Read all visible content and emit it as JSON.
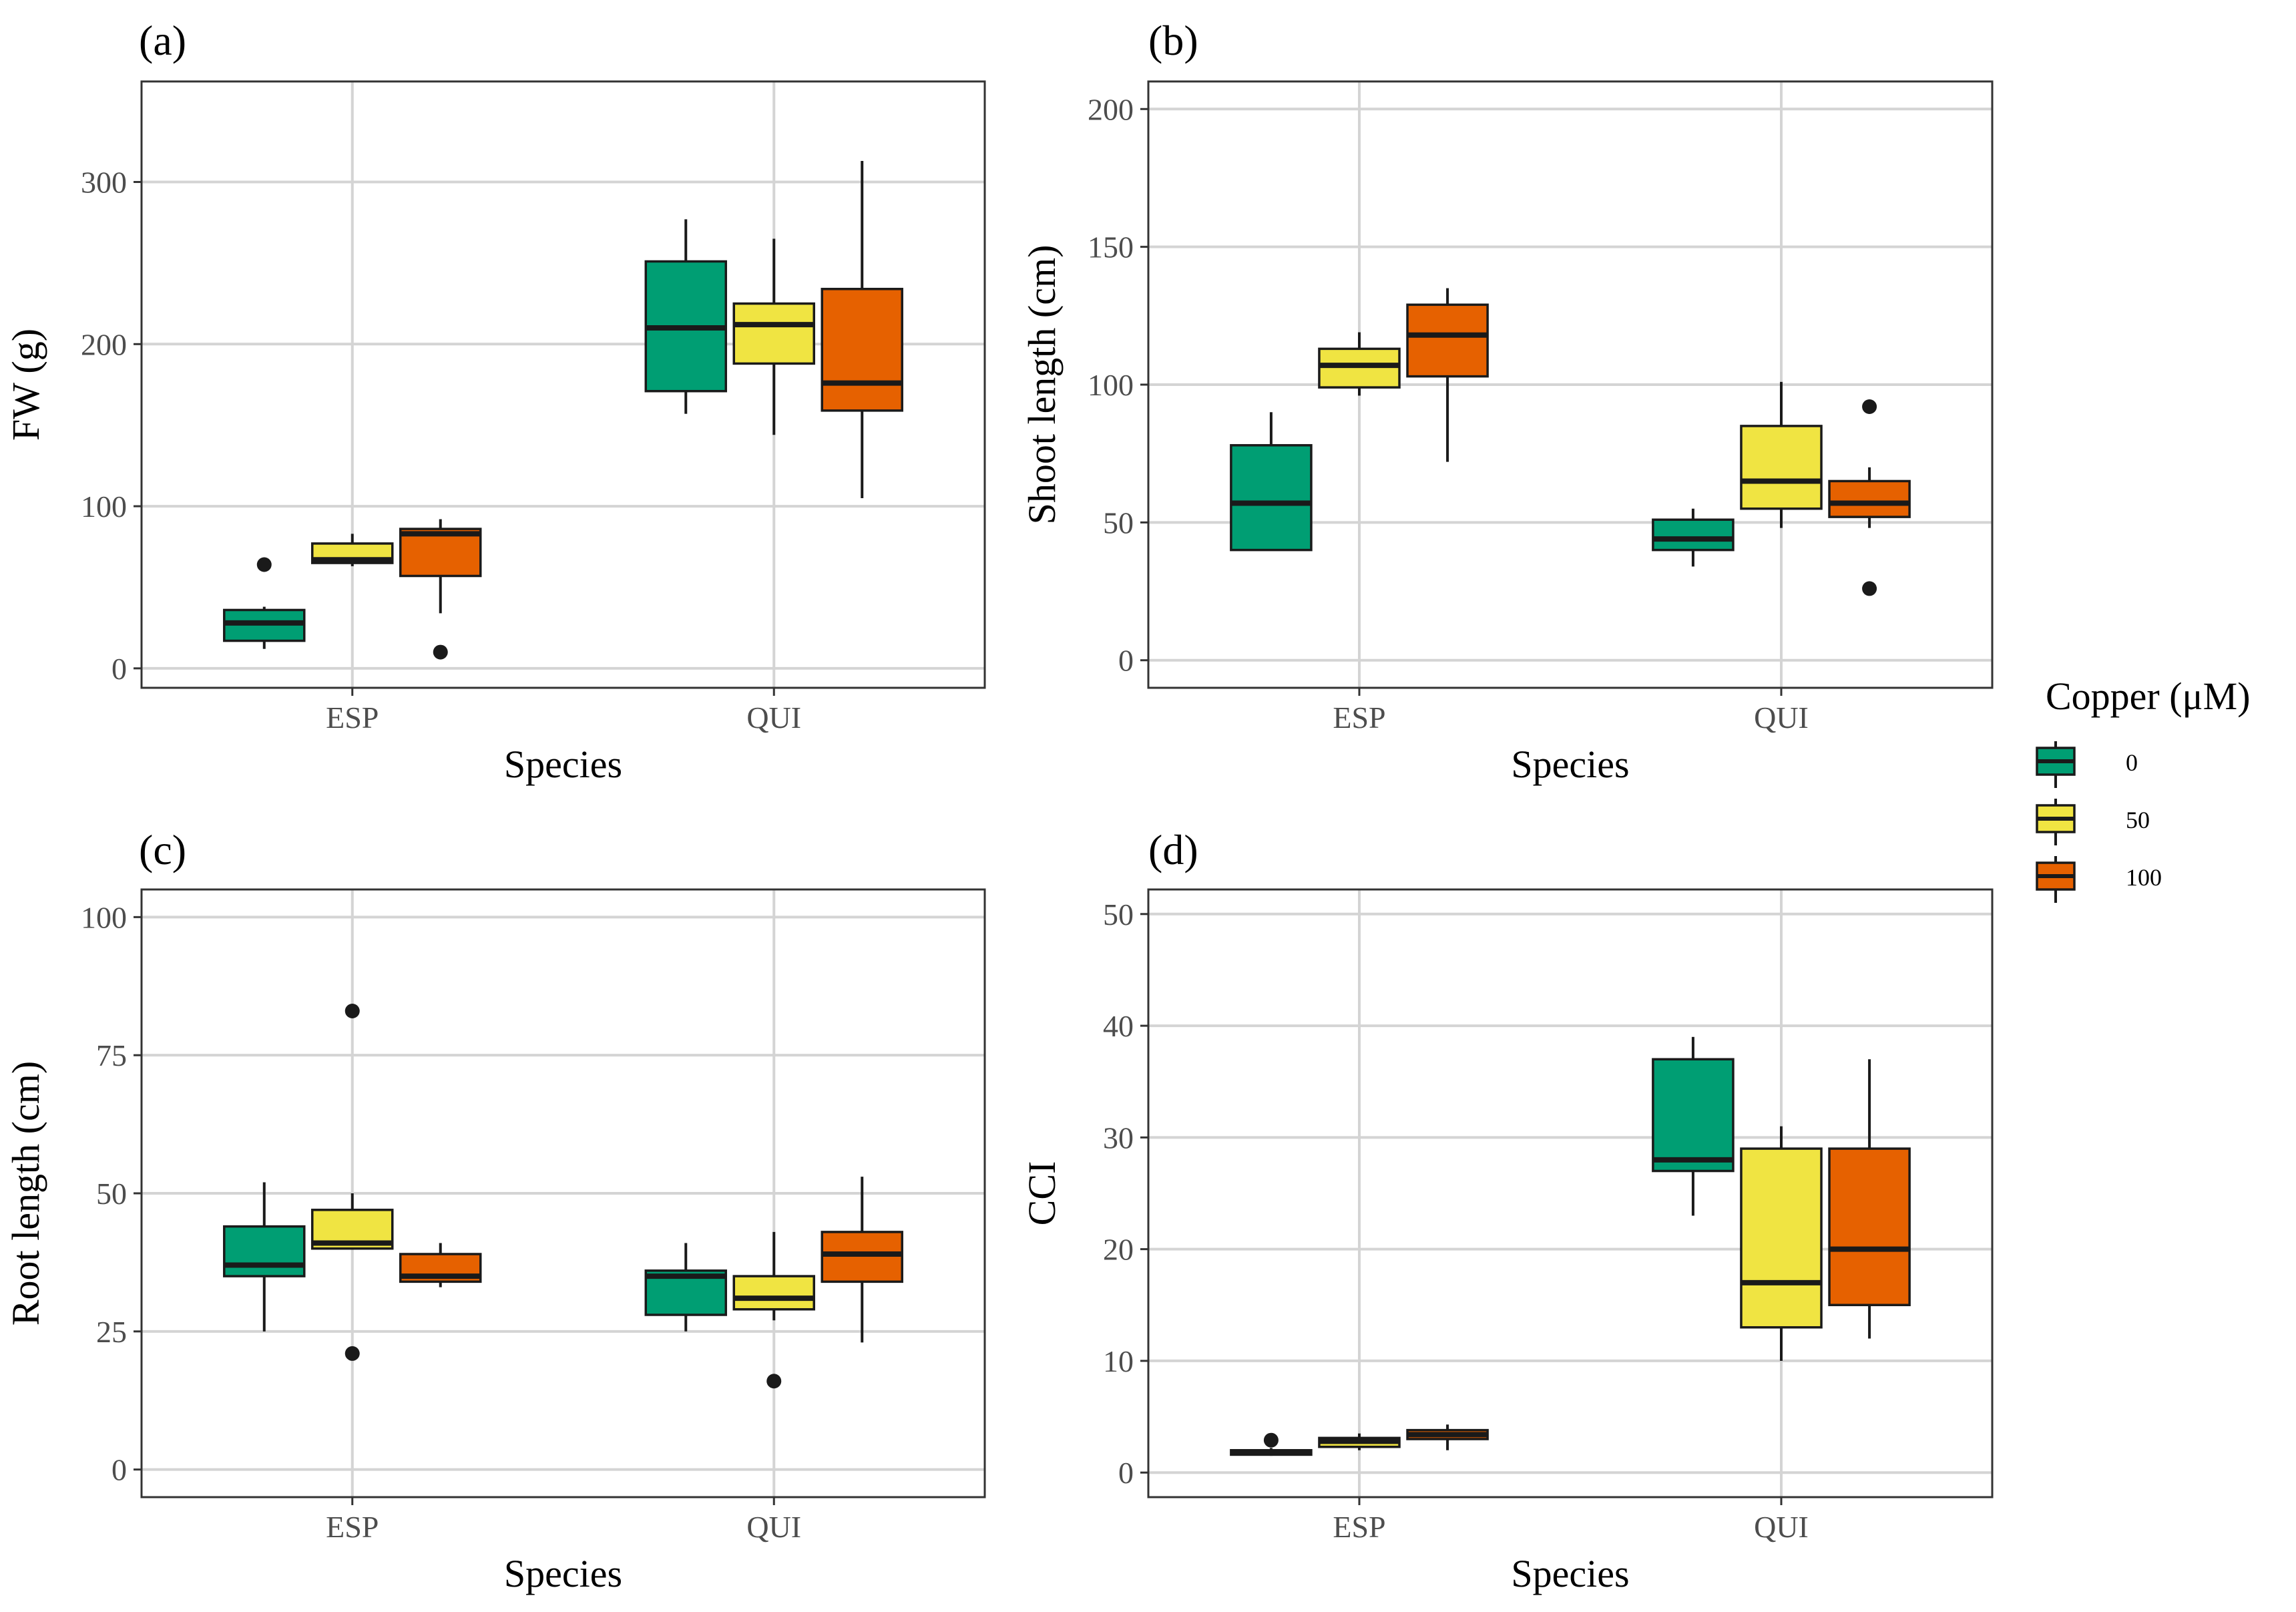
{
  "legend": {
    "title": "Copper (μM)",
    "items": [
      {
        "label": "0",
        "color": "#009E73"
      },
      {
        "label": "50",
        "color": "#F0E442"
      },
      {
        "label": "100",
        "color": "#E66100"
      }
    ]
  },
  "chart_data": [
    {
      "type": "box",
      "tag": "(a)",
      "title": "",
      "xlabel": "Species",
      "ylabel": "FW (g)",
      "categories": [
        "ESP",
        "QUI"
      ],
      "ylim": [
        -12,
        362
      ],
      "yticks": [
        0,
        100,
        200,
        300
      ],
      "series": [
        {
          "name": "0",
          "boxes": [
            {
              "min": 12,
              "q1": 17,
              "median": 28,
              "q3": 36,
              "max": 38,
              "outliers": [
                64
              ]
            },
            {
              "min": 157,
              "q1": 171,
              "median": 210,
              "q3": 251,
              "max": 277,
              "outliers": []
            }
          ]
        },
        {
          "name": "50",
          "boxes": [
            {
              "min": 63,
              "q1": 65,
              "median": 67,
              "q3": 77,
              "max": 83,
              "outliers": []
            },
            {
              "min": 144,
              "q1": 188,
              "median": 212,
              "q3": 225,
              "max": 265,
              "outliers": []
            }
          ]
        },
        {
          "name": "100",
          "boxes": [
            {
              "min": 34,
              "q1": 57,
              "median": 83,
              "q3": 86,
              "max": 92,
              "outliers": [
                10
              ]
            },
            {
              "min": 105,
              "q1": 159,
              "median": 176,
              "q3": 234,
              "max": 313,
              "outliers": []
            }
          ]
        }
      ]
    },
    {
      "type": "box",
      "tag": "(b)",
      "title": "",
      "xlabel": "Species",
      "ylabel": "Shoot length (cm)",
      "categories": [
        "ESP",
        "QUI"
      ],
      "ylim": [
        -10,
        210
      ],
      "yticks": [
        0,
        50,
        100,
        150,
        200
      ],
      "series": [
        {
          "name": "0",
          "boxes": [
            {
              "min": 40,
              "q1": 40,
              "median": 57,
              "q3": 78,
              "max": 90,
              "outliers": []
            },
            {
              "min": 34,
              "q1": 40,
              "median": 44,
              "q3": 51,
              "max": 55,
              "outliers": []
            }
          ]
        },
        {
          "name": "50",
          "boxes": [
            {
              "min": 96,
              "q1": 99,
              "median": 107,
              "q3": 113,
              "max": 119,
              "outliers": []
            },
            {
              "min": 48,
              "q1": 55,
              "median": 65,
              "q3": 85,
              "max": 101,
              "outliers": []
            }
          ]
        },
        {
          "name": "100",
          "boxes": [
            {
              "min": 72,
              "q1": 103,
              "median": 118,
              "q3": 129,
              "max": 135,
              "outliers": []
            },
            {
              "min": 48,
              "q1": 52,
              "median": 57,
              "q3": 65,
              "max": 70,
              "outliers": [
                92,
                26
              ]
            }
          ]
        }
      ]
    },
    {
      "type": "box",
      "tag": "(c)",
      "title": "",
      "xlabel": "Species",
      "ylabel": "Root length (cm)",
      "categories": [
        "ESP",
        "QUI"
      ],
      "ylim": [
        -5,
        105
      ],
      "yticks": [
        0,
        25,
        50,
        75,
        100
      ],
      "series": [
        {
          "name": "0",
          "boxes": [
            {
              "min": 25,
              "q1": 35,
              "median": 37,
              "q3": 44,
              "max": 52,
              "outliers": []
            },
            {
              "min": 25,
              "q1": 28,
              "median": 35,
              "q3": 36,
              "max": 41,
              "outliers": []
            }
          ]
        },
        {
          "name": "50",
          "boxes": [
            {
              "min": 40,
              "q1": 40,
              "median": 41,
              "q3": 47,
              "max": 50,
              "outliers": [
                83,
                21
              ]
            },
            {
              "min": 27,
              "q1": 29,
              "median": 31,
              "q3": 35,
              "max": 43,
              "outliers": [
                16
              ]
            }
          ]
        },
        {
          "name": "100",
          "boxes": [
            {
              "min": 33,
              "q1": 34,
              "median": 35,
              "q3": 39,
              "max": 41,
              "outliers": []
            },
            {
              "min": 23,
              "q1": 34,
              "median": 39,
              "q3": 43,
              "max": 53,
              "outliers": []
            }
          ]
        }
      ]
    },
    {
      "type": "box",
      "tag": "(d)",
      "title": "",
      "xlabel": "Species",
      "ylabel": "CCI",
      "categories": [
        "ESP",
        "QUI"
      ],
      "ylim": [
        -2.2,
        52.2
      ],
      "yticks": [
        0,
        10,
        20,
        30,
        40,
        50
      ],
      "series": [
        {
          "name": "0",
          "boxes": [
            {
              "min": 1.5,
              "q1": 1.6,
              "median": 1.8,
              "q3": 2.0,
              "max": 2.2,
              "outliers": [
                2.9
              ]
            },
            {
              "min": 23,
              "q1": 27,
              "median": 28,
              "q3": 37,
              "max": 39,
              "outliers": []
            }
          ]
        },
        {
          "name": "50",
          "boxes": [
            {
              "min": 2.0,
              "q1": 2.3,
              "median": 2.8,
              "q3": 3.1,
              "max": 3.5,
              "outliers": []
            },
            {
              "min": 10,
              "q1": 13,
              "median": 17,
              "q3": 29,
              "max": 31,
              "outliers": []
            }
          ]
        },
        {
          "name": "100",
          "boxes": [
            {
              "min": 2.0,
              "q1": 3.0,
              "median": 3.4,
              "q3": 3.8,
              "max": 4.3,
              "outliers": []
            },
            {
              "min": 12,
              "q1": 15,
              "median": 20,
              "q3": 29,
              "max": 37,
              "outliers": []
            }
          ]
        }
      ]
    }
  ]
}
